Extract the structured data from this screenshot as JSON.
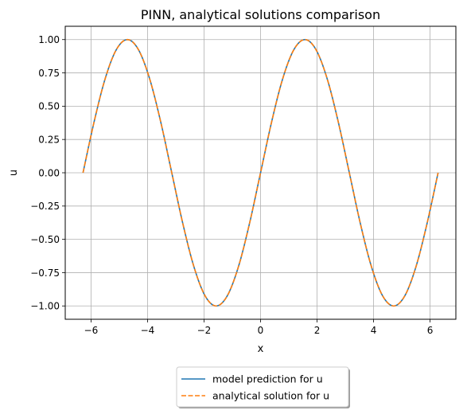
{
  "chart_data": {
    "type": "line",
    "title": "PINN, analytical solutions comparison",
    "xlabel": "x",
    "ylabel": "u",
    "xlim": [
      -6.912,
      6.912
    ],
    "ylim": [
      -1.1,
      1.1
    ],
    "xticks": [
      -6,
      -4,
      -2,
      0,
      2,
      4,
      6
    ],
    "xtick_labels": [
      "−6",
      "−4",
      "−2",
      "0",
      "2",
      "4",
      "6"
    ],
    "yticks": [
      -1.0,
      -0.75,
      -0.5,
      -0.25,
      0.0,
      0.25,
      0.5,
      0.75,
      1.0
    ],
    "ytick_labels": [
      "−1.00",
      "−0.75",
      "−0.50",
      "−0.25",
      "0.00",
      "0.25",
      "0.50",
      "0.75",
      "1.00"
    ],
    "grid": true,
    "legend_position": "below the axes, centered",
    "x": [
      -6.283,
      -5.89,
      -5.498,
      -5.105,
      -4.712,
      -4.32,
      -3.927,
      -3.534,
      -3.142,
      -2.749,
      -2.356,
      -1.963,
      -1.571,
      -1.178,
      -0.785,
      -0.393,
      0.0,
      0.393,
      0.785,
      1.178,
      1.571,
      1.963,
      2.356,
      2.749,
      3.142,
      3.534,
      3.927,
      4.32,
      4.712,
      5.105,
      5.498,
      5.89,
      6.283
    ],
    "series": [
      {
        "name": "model prediction for u",
        "color": "#1f77b4",
        "style": "solid",
        "values": [
          0.0,
          0.383,
          0.707,
          0.924,
          1.0,
          0.924,
          0.707,
          0.383,
          0.0,
          -0.383,
          -0.707,
          -0.924,
          -1.0,
          -0.924,
          -0.707,
          -0.383,
          0.0,
          0.383,
          0.707,
          0.924,
          1.0,
          0.924,
          0.707,
          0.383,
          0.0,
          -0.383,
          -0.707,
          -0.924,
          -1.0,
          -0.924,
          -0.707,
          -0.383,
          0.0
        ]
      },
      {
        "name": "analytical solution for u",
        "color": "#ff7f0e",
        "style": "dashed",
        "values": [
          0.0,
          0.383,
          0.707,
          0.924,
          1.0,
          0.924,
          0.707,
          0.383,
          0.0,
          -0.383,
          -0.707,
          -0.924,
          -1.0,
          -0.924,
          -0.707,
          -0.383,
          0.0,
          0.383,
          0.707,
          0.924,
          1.0,
          0.924,
          0.707,
          0.383,
          0.0,
          -0.383,
          -0.707,
          -0.924,
          -1.0,
          -0.924,
          -0.707,
          -0.383,
          0.0
        ]
      }
    ]
  }
}
